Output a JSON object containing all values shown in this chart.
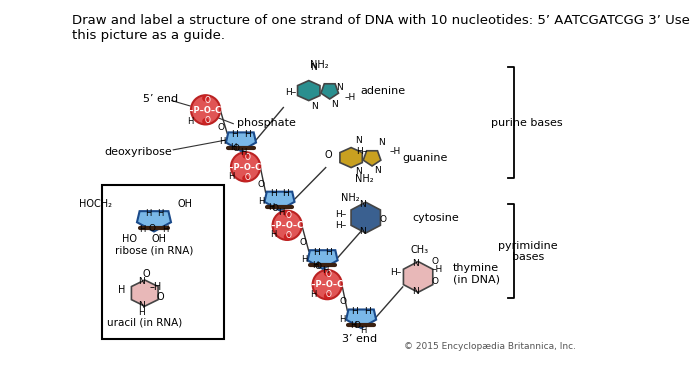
{
  "title_text": "Draw and label a structure of one strand of DNA with 10 nucleotides: 5’ AATCGATCGG 3’ Use\nthis picture as a guide.",
  "title_fontsize": 9.5,
  "copyright": "© 2015 Encyclopædia Britannica, Inc.",
  "bg_color": "#ffffff",
  "phosphate_color": "#e05555",
  "phosphate_edge": "#bb2222",
  "sugar_color": "#7ab8e8",
  "sugar_edge": "#1a4a8a",
  "sugar_dark": "#3a2010",
  "adenine_color": "#2a8f8f",
  "guanine_color": "#c8a020",
  "cytosine_color": "#3a6090",
  "thymine_color": "#e8b8b8",
  "uracil_color": "#e8b8b8",
  "line_color": "#222222",
  "lc": "#333333"
}
